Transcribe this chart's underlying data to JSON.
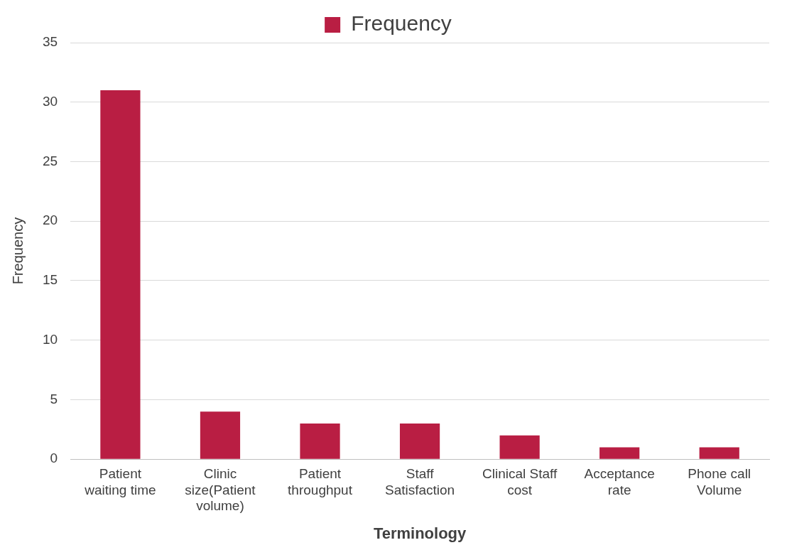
{
  "chart_data": {
    "type": "bar",
    "xlabel": "Terminology",
    "ylabel": "Frequency",
    "categories": [
      "Patient waiting time",
      "Clinic size(Patient volume)",
      "Patient throughput",
      "Staff Satisfaction",
      "Clinical Staff cost",
      "Acceptance rate",
      "Phone call Volume"
    ],
    "series": [
      {
        "name": "Frequency",
        "color": "#b91e43",
        "values": [
          31,
          4,
          3,
          3,
          2,
          1,
          1
        ]
      }
    ],
    "ylim": [
      0,
      35
    ],
    "yticks": [
      0,
      5,
      10,
      15,
      20,
      25,
      30,
      35
    ],
    "grid": "y",
    "legend": "top"
  }
}
